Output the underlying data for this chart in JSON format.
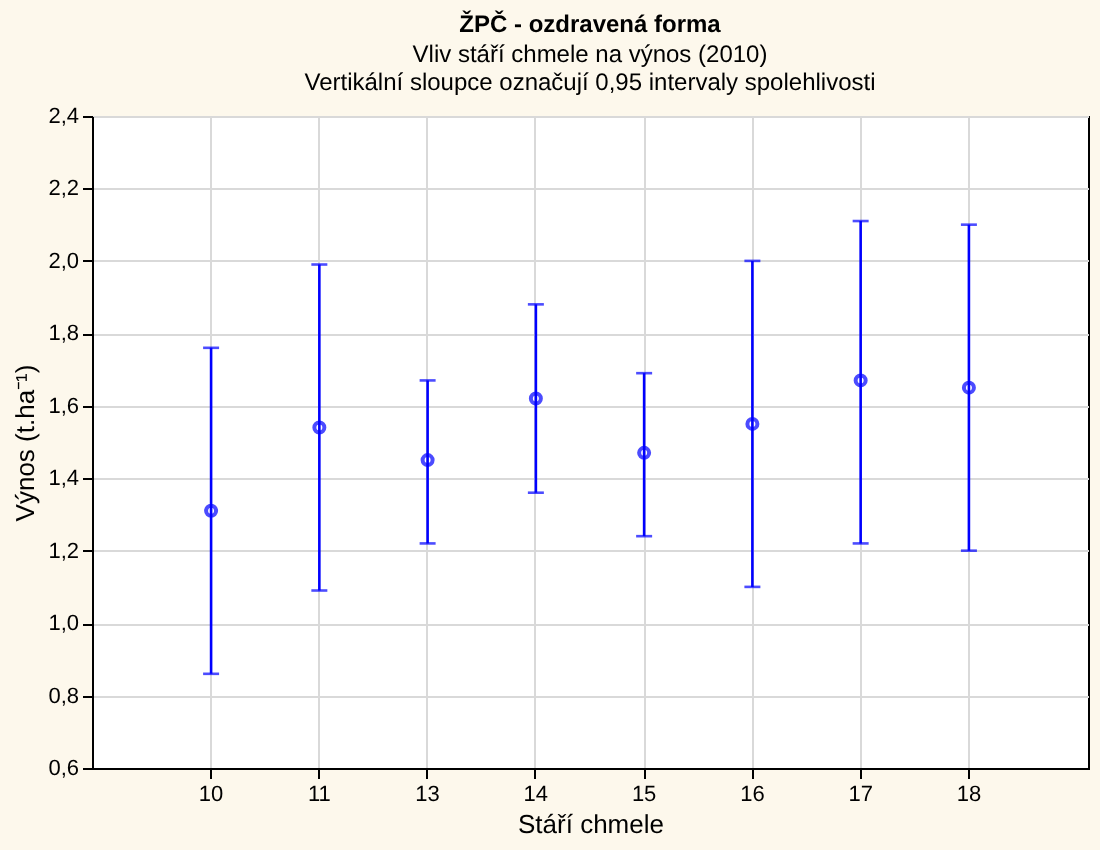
{
  "chart_data": {
    "type": "scatter",
    "title": "ŽPČ - ozdravená forma",
    "subtitle": [
      "Vliv stáří chmele na výnos (2010)",
      "Vertikální sloupce označují 0,95 intervaly spolehlivosti"
    ],
    "xlabel": "Stáří chmele",
    "ylabel": "Výnos (t.ha⁻¹)",
    "categories": [
      "10",
      "11",
      "13",
      "14",
      "15",
      "16",
      "17",
      "18"
    ],
    "series": [
      {
        "color": "#0000ff",
        "values": [
          1.31,
          1.54,
          1.45,
          1.62,
          1.47,
          1.55,
          1.67,
          1.65
        ],
        "errors": [
          [
            0.86,
            1.76
          ],
          [
            1.09,
            1.99
          ],
          [
            1.22,
            1.67
          ],
          [
            1.36,
            1.88
          ],
          [
            1.24,
            1.69
          ],
          [
            1.1,
            2.0
          ],
          [
            1.22,
            2.11
          ],
          [
            1.2,
            2.1
          ]
        ]
      }
    ],
    "ylim": [
      0.6,
      2.4
    ],
    "yticks": [
      {
        "value": 0.6,
        "label": "0,6"
      },
      {
        "value": 0.8,
        "label": "0,8"
      },
      {
        "value": 1.0,
        "label": "1,0"
      },
      {
        "value": 1.2,
        "label": "1,2"
      },
      {
        "value": 1.4,
        "label": "1,4"
      },
      {
        "value": 1.6,
        "label": "1,6"
      },
      {
        "value": 1.8,
        "label": "1,8"
      },
      {
        "value": 2.0,
        "label": "2,0"
      },
      {
        "value": 2.2,
        "label": "2,2"
      },
      {
        "value": 2.4,
        "label": "2,4"
      }
    ],
    "grid": true,
    "marker": "circle"
  }
}
